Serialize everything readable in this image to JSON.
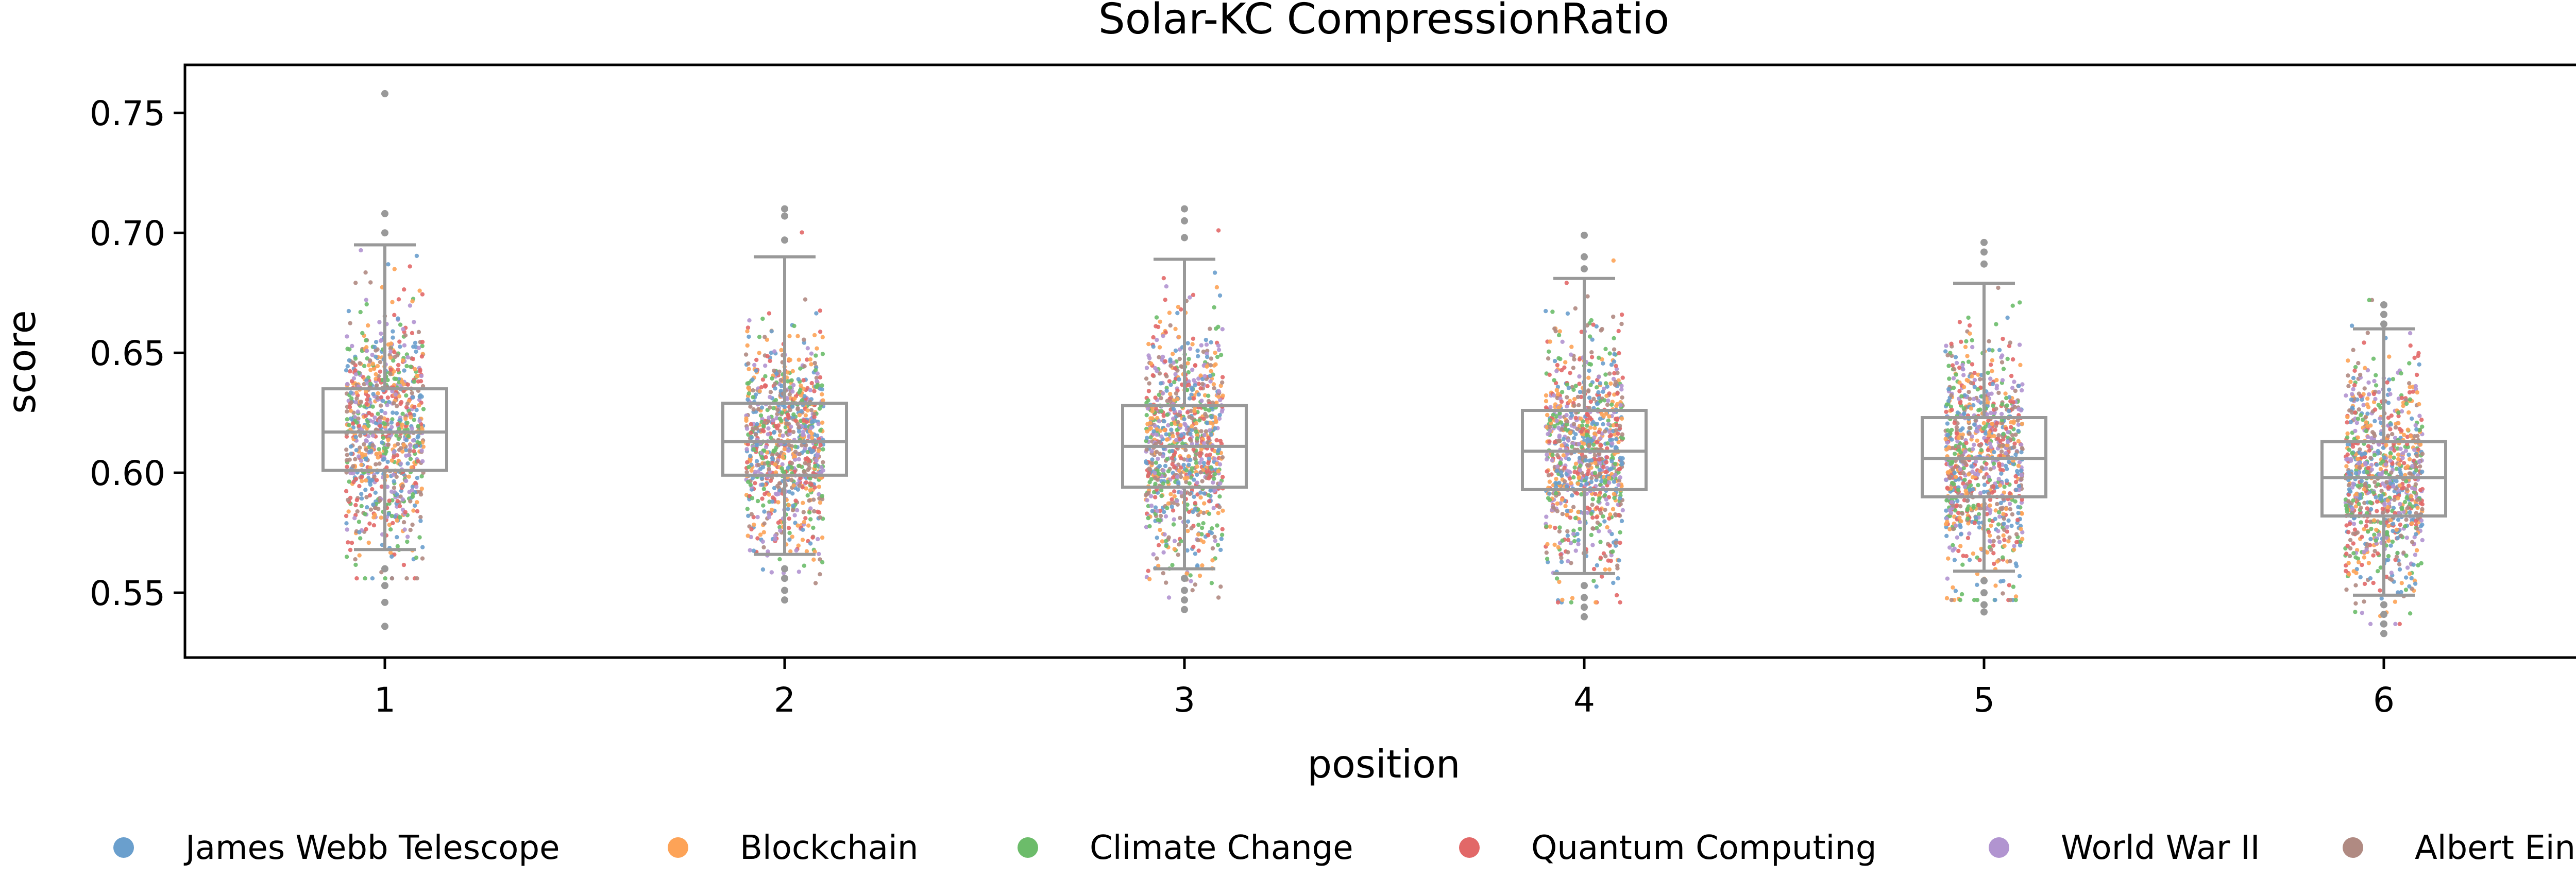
{
  "chart_data": {
    "type": "box-strip",
    "title": "Solar-KC CompressionRatio",
    "xlabel": "position",
    "ylabel": "score",
    "categories": [
      "1",
      "2",
      "3",
      "4",
      "5",
      "6"
    ],
    "ylim": [
      0.523,
      0.77
    ],
    "yticks": [
      "0.55",
      "0.60",
      "0.65",
      "0.70",
      "0.75"
    ],
    "ytick_values": [
      0.55,
      0.6,
      0.65,
      0.7,
      0.75
    ],
    "grid": false,
    "legend_position": "bottom",
    "box_color": "#999999",
    "boxes": [
      {
        "position": "1",
        "whisker_low": 0.568,
        "q1": 0.601,
        "median": 0.617,
        "q3": 0.635,
        "whisker_high": 0.695,
        "outliers": [
          0.758,
          0.708,
          0.7,
          0.56,
          0.553,
          0.546,
          0.536
        ]
      },
      {
        "position": "2",
        "whisker_low": 0.566,
        "q1": 0.599,
        "median": 0.613,
        "q3": 0.629,
        "whisker_high": 0.69,
        "outliers": [
          0.71,
          0.707,
          0.697,
          0.56,
          0.556,
          0.551,
          0.547
        ]
      },
      {
        "position": "3",
        "whisker_low": 0.56,
        "q1": 0.594,
        "median": 0.611,
        "q3": 0.628,
        "whisker_high": 0.689,
        "outliers": [
          0.71,
          0.705,
          0.698,
          0.556,
          0.551,
          0.547,
          0.543
        ]
      },
      {
        "position": "4",
        "whisker_low": 0.558,
        "q1": 0.593,
        "median": 0.609,
        "q3": 0.626,
        "whisker_high": 0.681,
        "outliers": [
          0.699,
          0.69,
          0.685,
          0.553,
          0.548,
          0.544,
          0.54
        ]
      },
      {
        "position": "5",
        "whisker_low": 0.559,
        "q1": 0.59,
        "median": 0.606,
        "q3": 0.623,
        "whisker_high": 0.679,
        "outliers": [
          0.696,
          0.692,
          0.687,
          0.555,
          0.55,
          0.545,
          0.542
        ]
      },
      {
        "position": "6",
        "whisker_low": 0.549,
        "q1": 0.582,
        "median": 0.598,
        "q3": 0.613,
        "whisker_high": 0.66,
        "outliers": [
          0.67,
          0.666,
          0.662,
          0.545,
          0.541,
          0.537,
          0.533
        ]
      }
    ],
    "series": [
      {
        "name": "James Webb Telescope",
        "color": "#6a9fcd"
      },
      {
        "name": "Blockchain",
        "color": "#fda357"
      },
      {
        "name": "Climate Change",
        "color": "#6cbc6a"
      },
      {
        "name": "Quantum Computing",
        "color": "#e26868"
      },
      {
        "name": "World War II",
        "color": "#b194d0"
      },
      {
        "name": "Albert Einstein",
        "color": "#b08a82"
      }
    ]
  }
}
